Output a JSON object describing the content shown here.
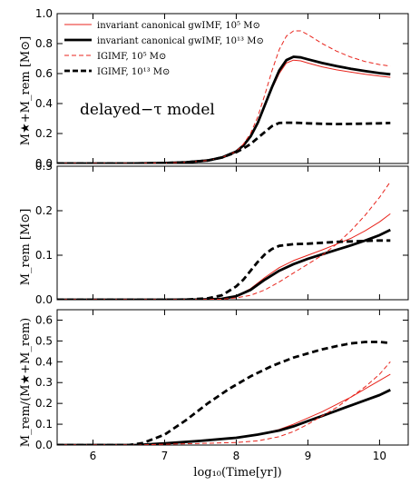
{
  "chart_data": [
    {
      "type": "line",
      "panel": "top",
      "ylabel": "M★+M_rem [M⊙]",
      "ylim": [
        0.0,
        1.0
      ],
      "yticks": [
        "0.0",
        "0.2",
        "0.4",
        "0.6",
        "0.8",
        "1.0"
      ],
      "xlim": [
        5.5,
        10.4
      ],
      "annotation": "delayed−τ model",
      "legend_position": "top-left",
      "series": [
        {
          "name": "invariant canonical gwIMF, 10⁵ M⊙",
          "color": "#e8241c",
          "style": "solid",
          "width": 1.0,
          "x": [
            5.5,
            6.0,
            6.5,
            7.0,
            7.3,
            7.6,
            7.8,
            8.0,
            8.1,
            8.2,
            8.3,
            8.4,
            8.5,
            8.6,
            8.7,
            8.8,
            8.9,
            9.0,
            9.2,
            9.4,
            9.6,
            9.8,
            10.0,
            10.15
          ],
          "y": [
            0.0,
            0.0,
            0.0,
            0.003,
            0.008,
            0.02,
            0.04,
            0.08,
            0.12,
            0.18,
            0.27,
            0.38,
            0.5,
            0.6,
            0.67,
            0.69,
            0.685,
            0.67,
            0.645,
            0.625,
            0.61,
            0.595,
            0.583,
            0.575
          ]
        },
        {
          "name": "invariant canonical gwIMF, 10¹³ M⊙",
          "color": "#000000",
          "style": "solid",
          "width": 2.8,
          "x": [
            5.5,
            6.0,
            6.5,
            7.0,
            7.3,
            7.6,
            7.8,
            8.0,
            8.1,
            8.2,
            8.3,
            8.4,
            8.5,
            8.6,
            8.7,
            8.8,
            8.9,
            9.0,
            9.2,
            9.4,
            9.6,
            9.8,
            10.0,
            10.15
          ],
          "y": [
            0.0,
            0.0,
            0.0,
            0.003,
            0.008,
            0.02,
            0.04,
            0.08,
            0.12,
            0.18,
            0.27,
            0.39,
            0.51,
            0.62,
            0.69,
            0.712,
            0.708,
            0.695,
            0.67,
            0.65,
            0.632,
            0.617,
            0.603,
            0.595
          ]
        },
        {
          "name": "IGIMF, 10⁵ M⊙",
          "color": "#e8241c",
          "style": "dashed",
          "width": 1.0,
          "x": [
            5.5,
            6.0,
            6.5,
            7.0,
            7.3,
            7.6,
            7.8,
            8.0,
            8.1,
            8.2,
            8.3,
            8.4,
            8.5,
            8.6,
            8.7,
            8.8,
            8.9,
            9.0,
            9.2,
            9.4,
            9.6,
            9.8,
            10.0,
            10.15
          ],
          "y": [
            0.0,
            0.0,
            0.0,
            0.003,
            0.008,
            0.02,
            0.04,
            0.08,
            0.13,
            0.2,
            0.31,
            0.46,
            0.62,
            0.76,
            0.85,
            0.885,
            0.885,
            0.86,
            0.8,
            0.75,
            0.71,
            0.68,
            0.66,
            0.65
          ]
        },
        {
          "name": "IGIMF, 10¹³ M⊙",
          "color": "#000000",
          "style": "dashed",
          "width": 2.8,
          "x": [
            5.5,
            6.0,
            6.5,
            7.0,
            7.3,
            7.6,
            7.8,
            8.0,
            8.1,
            8.2,
            8.3,
            8.4,
            8.5,
            8.6,
            8.7,
            8.8,
            8.9,
            9.0,
            9.2,
            9.4,
            9.6,
            9.8,
            10.0,
            10.15
          ],
          "y": [
            0.0,
            0.0,
            0.0,
            0.003,
            0.008,
            0.02,
            0.04,
            0.075,
            0.1,
            0.13,
            0.17,
            0.21,
            0.25,
            0.27,
            0.272,
            0.272,
            0.27,
            0.268,
            0.265,
            0.263,
            0.264,
            0.266,
            0.268,
            0.27
          ]
        }
      ]
    },
    {
      "type": "line",
      "panel": "middle",
      "ylabel": "M_rem [M⊙]",
      "ylim": [
        0.0,
        0.3
      ],
      "yticks": [
        "0.0",
        "0.1",
        "0.2",
        "0.3"
      ],
      "xlim": [
        5.5,
        10.4
      ],
      "series": [
        {
          "color": "#e8241c",
          "style": "solid",
          "width": 1.0,
          "x": [
            5.5,
            6.0,
            7.0,
            7.5,
            7.8,
            8.0,
            8.2,
            8.4,
            8.6,
            8.8,
            9.0,
            9.2,
            9.4,
            9.6,
            9.8,
            10.0,
            10.15
          ],
          "y": [
            0.0,
            0.0,
            0.0,
            0.0005,
            0.002,
            0.008,
            0.025,
            0.05,
            0.072,
            0.088,
            0.1,
            0.112,
            0.125,
            0.138,
            0.155,
            0.175,
            0.193
          ]
        },
        {
          "color": "#000000",
          "style": "solid",
          "width": 2.8,
          "x": [
            5.5,
            6.0,
            7.0,
            7.5,
            7.8,
            8.0,
            8.2,
            8.4,
            8.6,
            8.8,
            9.0,
            9.2,
            9.4,
            9.6,
            9.8,
            10.0,
            10.15
          ],
          "y": [
            0.0,
            0.0,
            0.0,
            0.0005,
            0.002,
            0.008,
            0.022,
            0.045,
            0.065,
            0.08,
            0.092,
            0.102,
            0.112,
            0.122,
            0.133,
            0.145,
            0.157
          ]
        },
        {
          "color": "#e8241c",
          "style": "dashed",
          "width": 1.0,
          "x": [
            5.5,
            6.0,
            7.0,
            7.5,
            7.8,
            8.0,
            8.2,
            8.4,
            8.6,
            8.8,
            9.0,
            9.2,
            9.4,
            9.6,
            9.8,
            10.0,
            10.15
          ],
          "y": [
            0.0,
            0.0,
            0.0,
            0.0003,
            0.001,
            0.004,
            0.01,
            0.022,
            0.04,
            0.06,
            0.08,
            0.1,
            0.125,
            0.155,
            0.19,
            0.23,
            0.265
          ]
        },
        {
          "color": "#000000",
          "style": "dashed",
          "width": 2.8,
          "x": [
            5.5,
            6.0,
            7.0,
            7.3,
            7.6,
            7.8,
            8.0,
            8.1,
            8.2,
            8.3,
            8.4,
            8.5,
            8.6,
            8.8,
            9.0,
            9.2,
            9.4,
            9.6,
            9.8,
            10.0,
            10.15
          ],
          "y": [
            0.0,
            0.0,
            0.0,
            0.0005,
            0.003,
            0.01,
            0.03,
            0.045,
            0.065,
            0.085,
            0.102,
            0.114,
            0.121,
            0.125,
            0.126,
            0.128,
            0.13,
            0.131,
            0.132,
            0.133,
            0.133
          ]
        }
      ]
    },
    {
      "type": "line",
      "panel": "bottom",
      "ylabel": "M_rem/(M★+M_rem)",
      "ylim": [
        0.0,
        0.65
      ],
      "yticks": [
        "0.0",
        "0.1",
        "0.2",
        "0.3",
        "0.4",
        "0.5",
        "0.6"
      ],
      "xlim": [
        5.5,
        10.4
      ],
      "xlabel": "log₁₀(Time[yr])",
      "xticks": [
        "6",
        "7",
        "8",
        "9",
        "10"
      ],
      "series": [
        {
          "color": "#e8241c",
          "style": "solid",
          "width": 1.0,
          "x": [
            5.5,
            6.0,
            6.6,
            7.0,
            7.5,
            8.0,
            8.3,
            8.6,
            8.8,
            9.0,
            9.2,
            9.4,
            9.6,
            9.8,
            10.0,
            10.15
          ],
          "y": [
            0.0,
            0.0,
            0.0,
            0.008,
            0.02,
            0.035,
            0.05,
            0.075,
            0.1,
            0.13,
            0.16,
            0.195,
            0.23,
            0.27,
            0.31,
            0.34
          ]
        },
        {
          "color": "#000000",
          "style": "solid",
          "width": 2.8,
          "x": [
            5.5,
            6.0,
            6.6,
            7.0,
            7.5,
            8.0,
            8.3,
            8.6,
            8.8,
            9.0,
            9.2,
            9.4,
            9.6,
            9.8,
            10.0,
            10.15
          ],
          "y": [
            0.0,
            0.0,
            0.0,
            0.008,
            0.02,
            0.035,
            0.05,
            0.07,
            0.09,
            0.115,
            0.14,
            0.165,
            0.19,
            0.215,
            0.24,
            0.265
          ]
        },
        {
          "color": "#e8241c",
          "style": "dashed",
          "width": 1.0,
          "x": [
            5.5,
            6.0,
            6.6,
            7.0,
            7.5,
            8.0,
            8.3,
            8.6,
            8.8,
            9.0,
            9.2,
            9.4,
            9.6,
            9.8,
            10.0,
            10.15
          ],
          "y": [
            0.0,
            0.0,
            0.0,
            0.004,
            0.008,
            0.012,
            0.02,
            0.04,
            0.065,
            0.1,
            0.14,
            0.18,
            0.23,
            0.28,
            0.34,
            0.4
          ]
        },
        {
          "color": "#000000",
          "style": "dashed",
          "width": 2.8,
          "x": [
            5.5,
            6.0,
            6.5,
            6.7,
            7.0,
            7.3,
            7.6,
            7.9,
            8.2,
            8.5,
            8.8,
            9.0,
            9.2,
            9.4,
            9.6,
            9.8,
            10.0,
            10.15
          ],
          "y": [
            0.0,
            0.0,
            0.0,
            0.01,
            0.05,
            0.12,
            0.2,
            0.27,
            0.33,
            0.38,
            0.42,
            0.44,
            0.46,
            0.475,
            0.488,
            0.495,
            0.495,
            0.49
          ]
        }
      ]
    }
  ]
}
